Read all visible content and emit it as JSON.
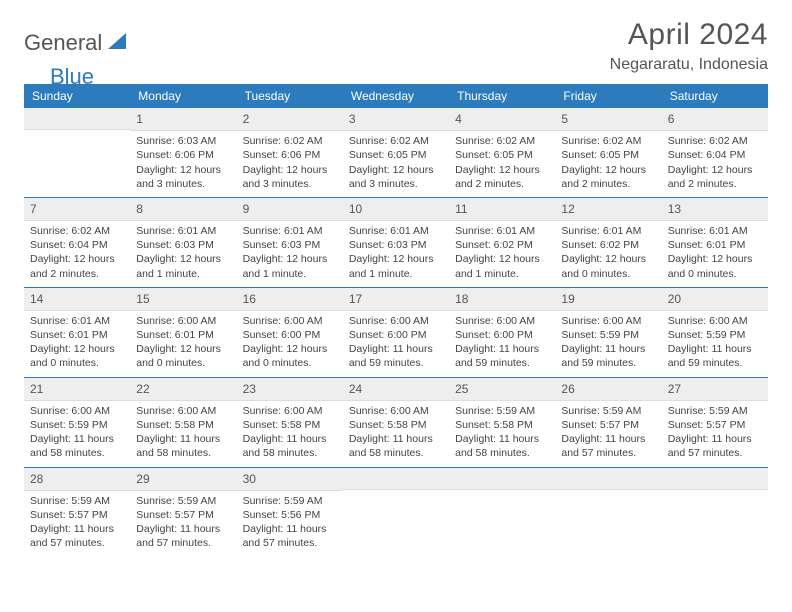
{
  "brand": {
    "part1": "General",
    "part2": "Blue"
  },
  "title": "April 2024",
  "location": "Negararatu, Indonesia",
  "colors": {
    "accent": "#2b7bbd",
    "headerBg": "#eeeeee",
    "text": "#444"
  },
  "weekdays": [
    "Sunday",
    "Monday",
    "Tuesday",
    "Wednesday",
    "Thursday",
    "Friday",
    "Saturday"
  ],
  "weeks": [
    [
      {
        "n": "",
        "lines": []
      },
      {
        "n": "1",
        "lines": [
          "Sunrise: 6:03 AM",
          "Sunset: 6:06 PM",
          "Daylight: 12 hours and 3 minutes."
        ]
      },
      {
        "n": "2",
        "lines": [
          "Sunrise: 6:02 AM",
          "Sunset: 6:06 PM",
          "Daylight: 12 hours and 3 minutes."
        ]
      },
      {
        "n": "3",
        "lines": [
          "Sunrise: 6:02 AM",
          "Sunset: 6:05 PM",
          "Daylight: 12 hours and 3 minutes."
        ]
      },
      {
        "n": "4",
        "lines": [
          "Sunrise: 6:02 AM",
          "Sunset: 6:05 PM",
          "Daylight: 12 hours and 2 minutes."
        ]
      },
      {
        "n": "5",
        "lines": [
          "Sunrise: 6:02 AM",
          "Sunset: 6:05 PM",
          "Daylight: 12 hours and 2 minutes."
        ]
      },
      {
        "n": "6",
        "lines": [
          "Sunrise: 6:02 AM",
          "Sunset: 6:04 PM",
          "Daylight: 12 hours and 2 minutes."
        ]
      }
    ],
    [
      {
        "n": "7",
        "lines": [
          "Sunrise: 6:02 AM",
          "Sunset: 6:04 PM",
          "Daylight: 12 hours and 2 minutes."
        ]
      },
      {
        "n": "8",
        "lines": [
          "Sunrise: 6:01 AM",
          "Sunset: 6:03 PM",
          "Daylight: 12 hours and 1 minute."
        ]
      },
      {
        "n": "9",
        "lines": [
          "Sunrise: 6:01 AM",
          "Sunset: 6:03 PM",
          "Daylight: 12 hours and 1 minute."
        ]
      },
      {
        "n": "10",
        "lines": [
          "Sunrise: 6:01 AM",
          "Sunset: 6:03 PM",
          "Daylight: 12 hours and 1 minute."
        ]
      },
      {
        "n": "11",
        "lines": [
          "Sunrise: 6:01 AM",
          "Sunset: 6:02 PM",
          "Daylight: 12 hours and 1 minute."
        ]
      },
      {
        "n": "12",
        "lines": [
          "Sunrise: 6:01 AM",
          "Sunset: 6:02 PM",
          "Daylight: 12 hours and 0 minutes."
        ]
      },
      {
        "n": "13",
        "lines": [
          "Sunrise: 6:01 AM",
          "Sunset: 6:01 PM",
          "Daylight: 12 hours and 0 minutes."
        ]
      }
    ],
    [
      {
        "n": "14",
        "lines": [
          "Sunrise: 6:01 AM",
          "Sunset: 6:01 PM",
          "Daylight: 12 hours and 0 minutes."
        ]
      },
      {
        "n": "15",
        "lines": [
          "Sunrise: 6:00 AM",
          "Sunset: 6:01 PM",
          "Daylight: 12 hours and 0 minutes."
        ]
      },
      {
        "n": "16",
        "lines": [
          "Sunrise: 6:00 AM",
          "Sunset: 6:00 PM",
          "Daylight: 12 hours and 0 minutes."
        ]
      },
      {
        "n": "17",
        "lines": [
          "Sunrise: 6:00 AM",
          "Sunset: 6:00 PM",
          "Daylight: 11 hours and 59 minutes."
        ]
      },
      {
        "n": "18",
        "lines": [
          "Sunrise: 6:00 AM",
          "Sunset: 6:00 PM",
          "Daylight: 11 hours and 59 minutes."
        ]
      },
      {
        "n": "19",
        "lines": [
          "Sunrise: 6:00 AM",
          "Sunset: 5:59 PM",
          "Daylight: 11 hours and 59 minutes."
        ]
      },
      {
        "n": "20",
        "lines": [
          "Sunrise: 6:00 AM",
          "Sunset: 5:59 PM",
          "Daylight: 11 hours and 59 minutes."
        ]
      }
    ],
    [
      {
        "n": "21",
        "lines": [
          "Sunrise: 6:00 AM",
          "Sunset: 5:59 PM",
          "Daylight: 11 hours and 58 minutes."
        ]
      },
      {
        "n": "22",
        "lines": [
          "Sunrise: 6:00 AM",
          "Sunset: 5:58 PM",
          "Daylight: 11 hours and 58 minutes."
        ]
      },
      {
        "n": "23",
        "lines": [
          "Sunrise: 6:00 AM",
          "Sunset: 5:58 PM",
          "Daylight: 11 hours and 58 minutes."
        ]
      },
      {
        "n": "24",
        "lines": [
          "Sunrise: 6:00 AM",
          "Sunset: 5:58 PM",
          "Daylight: 11 hours and 58 minutes."
        ]
      },
      {
        "n": "25",
        "lines": [
          "Sunrise: 5:59 AM",
          "Sunset: 5:58 PM",
          "Daylight: 11 hours and 58 minutes."
        ]
      },
      {
        "n": "26",
        "lines": [
          "Sunrise: 5:59 AM",
          "Sunset: 5:57 PM",
          "Daylight: 11 hours and 57 minutes."
        ]
      },
      {
        "n": "27",
        "lines": [
          "Sunrise: 5:59 AM",
          "Sunset: 5:57 PM",
          "Daylight: 11 hours and 57 minutes."
        ]
      }
    ],
    [
      {
        "n": "28",
        "lines": [
          "Sunrise: 5:59 AM",
          "Sunset: 5:57 PM",
          "Daylight: 11 hours and 57 minutes."
        ]
      },
      {
        "n": "29",
        "lines": [
          "Sunrise: 5:59 AM",
          "Sunset: 5:57 PM",
          "Daylight: 11 hours and 57 minutes."
        ]
      },
      {
        "n": "30",
        "lines": [
          "Sunrise: 5:59 AM",
          "Sunset: 5:56 PM",
          "Daylight: 11 hours and 57 minutes."
        ]
      },
      {
        "n": "",
        "lines": []
      },
      {
        "n": "",
        "lines": []
      },
      {
        "n": "",
        "lines": []
      },
      {
        "n": "",
        "lines": []
      }
    ]
  ]
}
